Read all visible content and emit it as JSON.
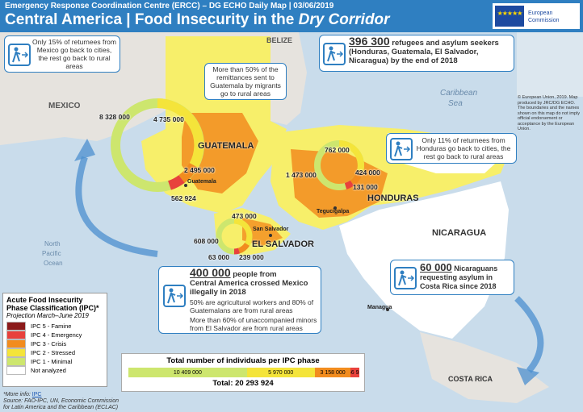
{
  "header": {
    "supertitle": "Emergency Response Coordination Centre (ERCC) – DG ECHO Daily Map | 03/06/2019",
    "title": "Central America | Food Insecurity in the ",
    "title_italic": "Dry Corridor",
    "eu_line1": "European",
    "eu_line2": "Commission"
  },
  "labels": {
    "mexico": "MEXICO",
    "belize": "BELIZE",
    "guatemala": "GUATEMALA",
    "honduras": "HONDURAS",
    "el_salvador": "EL SALVADOR",
    "nicaragua": "NICARAGUA",
    "costa_rica": "COSTA RICA",
    "caribbean1": "Caribbean",
    "caribbean2": "Sea",
    "pacific1": "North",
    "pacific2": "Pacific",
    "pacific3": "Ocean",
    "city_guatemala": "Guatemala",
    "city_sansalvador": "San Salvador",
    "city_tegucigalpa": "Tegucigalpa",
    "city_managua": "Managua"
  },
  "rings": {
    "guatemala": [
      "8 328 000",
      "4 735 000",
      "2 495 000",
      "562 924"
    ],
    "honduras": [
      "762 000",
      "1 473 000",
      "424 000",
      "131 000"
    ],
    "el_salvador": [
      "473 000",
      "608 000",
      "63 000",
      "239 000"
    ]
  },
  "callouts": {
    "mexico_return": "Only 15% of returnees from Mexico go back to cities, the rest go back to rural areas",
    "remittances": "More than 50% of the remittances sent to Guatemala by migrants go to rural areas",
    "refugees_num": "396 300",
    "refugees_text1": " refugees and asylum seekers",
    "refugees_text2": "(Honduras, Guatemala, El Salvador, Nicaragua) by the end of 2018",
    "honduras_return": "Only 11% of returnees from Honduras go back to cities, the rest go back to rural areas",
    "crossed_num": "400 000",
    "crossed_text1": " people from",
    "crossed_text2": "Central America crossed Mexico illegally in 2018",
    "crossed_text3": "50% are agricultural workers and 80% of Guatemalans are from rural areas",
    "crossed_text4": "More than 60% of unaccompanied minors from El Salvador are from rural areas",
    "nicaragua_num": "60 000",
    "nicaragua_text1": " Nicaraguans",
    "nicaragua_text2": "requesting asylum in Costa Rica since 2018"
  },
  "copyright": "© European Union, 2019. Map produced by JRC/DG ECHO. The boundaries and the names shown on this map do not imply official endorsement or acceptance by the European Union.",
  "legend": {
    "title": "Acute Food Insecurity Phase Classification (IPC)*",
    "projection": "Projection March–June 2019",
    "items": [
      {
        "label": "IPC 5 - Famine",
        "color": "#8b1a1a"
      },
      {
        "label": "IPC 4 - Emergency",
        "color": "#e8413c"
      },
      {
        "label": "IPC 3 - Crisis",
        "color": "#f28c1e"
      },
      {
        "label": "IPC 2 - Stressed",
        "color": "#f4e43a"
      },
      {
        "label": "IPC 1 - Minimal",
        "color": "#cde66e"
      },
      {
        "label": "Not analyzed",
        "color": "#ffffff"
      }
    ]
  },
  "totals": {
    "title": "Total number of individuals per IPC phase",
    "segments": [
      {
        "value": 10409000,
        "label": "10 409 000",
        "color": "#cde66e"
      },
      {
        "value": 5970000,
        "label": "5 970 000",
        "color": "#f4e43a"
      },
      {
        "value": 3158000,
        "label": "3 158 000",
        "color": "#f28c1e"
      },
      {
        "value": 756924,
        "label": "756 924",
        "color": "#e8413c"
      }
    ],
    "total": "Total: 20 293 924"
  },
  "footer": {
    "more_info": "*More info: ",
    "link": "IPC",
    "source1": "Source: FAO-IPC, UN, Economic Commission",
    "source2": "for Latin America and the Caribbean (ECLAC)"
  }
}
